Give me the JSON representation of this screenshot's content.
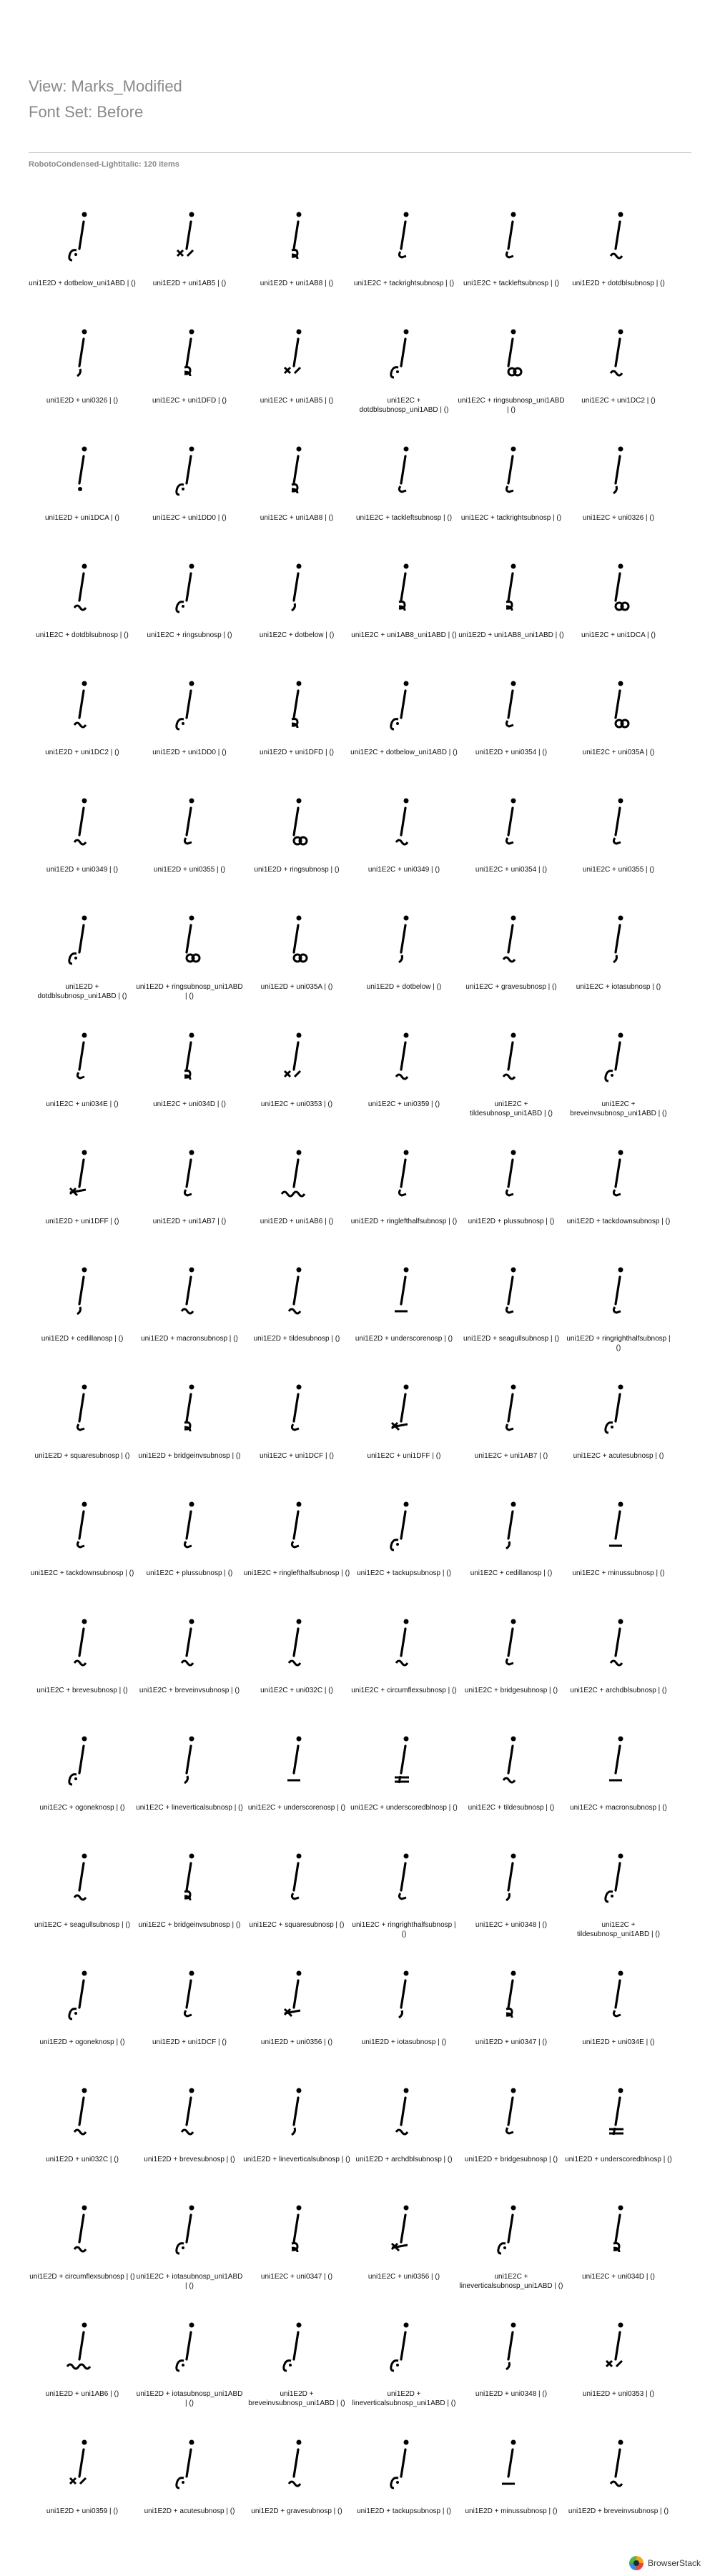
{
  "header": {
    "view_title": "View: Marks_Modified",
    "font_set": "Font Set: Before"
  },
  "section": {
    "title": "RobotoCondensed-LightItalic: 120 items"
  },
  "items": [
    {
      "label": "uni1E2D + dotbelow_uni1ABD | ()",
      "mark": "hook"
    },
    {
      "label": "uni1E2D + uni1AB5 | ()",
      "mark": "x"
    },
    {
      "label": "uni1E2D + uni1AB8 | ()",
      "mark": "double"
    },
    {
      "label": "uni1E2C + tackrightsubnosp | ()",
      "mark": "tick"
    },
    {
      "label": "uni1E2C + tackleftsubnosp | ()",
      "mark": "tick"
    },
    {
      "label": "uni1E2D + dotdblsubnosp | ()",
      "mark": "tilde"
    },
    {
      "label": "uni1E2D + uni0326 | ()",
      "mark": "comma"
    },
    {
      "label": "uni1E2C + uni1DFD | ()",
      "mark": "double"
    },
    {
      "label": "uni1E2C + uni1AB5 | ()",
      "mark": "x"
    },
    {
      "label": "uni1E2C + dotdblsubnosp_uni1ABD | ()",
      "mark": "hook"
    },
    {
      "label": "uni1E2C + ringsubnosp_uni1ABD | ()",
      "mark": "ring"
    },
    {
      "label": "uni1E2C + uni1DC2 | ()",
      "mark": "tilde"
    },
    {
      "label": "uni1E2D + uni1DCA | ()",
      "mark": "dot"
    },
    {
      "label": "uni1E2C + uni1DD0 | ()",
      "mark": "hook"
    },
    {
      "label": "uni1E2C + uni1AB8 | ()",
      "mark": "double"
    },
    {
      "label": "uni1E2C + tackleftsubnosp | ()",
      "mark": "tick"
    },
    {
      "label": "uni1E2C + tackrightsubnosp | ()",
      "mark": "tick"
    },
    {
      "label": "uni1E2C + uni0326 | ()",
      "mark": "comma"
    },
    {
      "label": "uni1E2C + dotdblsubnosp | ()",
      "mark": "tilde"
    },
    {
      "label": "uni1E2C + ringsubnosp | ()",
      "mark": "hook"
    },
    {
      "label": "uni1E2C + dotbelow | ()",
      "mark": "comma"
    },
    {
      "label": "uni1E2C + uni1AB8_uni1ABD | ()",
      "mark": "double"
    },
    {
      "label": "uni1E2D + uni1AB8_uni1ABD | ()",
      "mark": "double"
    },
    {
      "label": "uni1E2C + uni1DCA | ()",
      "mark": "ring"
    },
    {
      "label": "uni1E2D + uni1DC2 | ()",
      "mark": "tilde"
    },
    {
      "label": "uni1E2D + uni1DD0 | ()",
      "mark": "hook"
    },
    {
      "label": "uni1E2D + uni1DFD | ()",
      "mark": "double"
    },
    {
      "label": "uni1E2C + dotbelow_uni1ABD | ()",
      "mark": "hook"
    },
    {
      "label": "uni1E2D + uni0354 | ()",
      "mark": "tick"
    },
    {
      "label": "uni1E2C + uni035A | ()",
      "mark": "ring"
    },
    {
      "label": "uni1E2D + uni0349 | ()",
      "mark": "tilde"
    },
    {
      "label": "uni1E2D + uni0355 | ()",
      "mark": "tick"
    },
    {
      "label": "uni1E2D + ringsubnosp | ()",
      "mark": "ring"
    },
    {
      "label": "uni1E2C + uni0349 | ()",
      "mark": "tilde"
    },
    {
      "label": "uni1E2C + uni0354 | ()",
      "mark": "tick"
    },
    {
      "label": "uni1E2C + uni0355 | ()",
      "mark": "tick"
    },
    {
      "label": "uni1E2D + dotdblsubnosp_uni1ABD | ()",
      "mark": "hook"
    },
    {
      "label": "uni1E2D + ringsubnosp_uni1ABD | ()",
      "mark": "ring"
    },
    {
      "label": "uni1E2D + uni035A | ()",
      "mark": "ring"
    },
    {
      "label": "uni1E2D + dotbelow | ()",
      "mark": "comma"
    },
    {
      "label": "uni1E2C + gravesubnosp | ()",
      "mark": "tilde"
    },
    {
      "label": "uni1E2C + iotasubnosp | ()",
      "mark": "comma"
    },
    {
      "label": "uni1E2C + uni034E | ()",
      "mark": "tick"
    },
    {
      "label": "uni1E2C + uni034D | ()",
      "mark": "double"
    },
    {
      "label": "uni1E2C + uni0353 | ()",
      "mark": "x"
    },
    {
      "label": "uni1E2C + uni0359 | ()",
      "mark": "tilde"
    },
    {
      "label": "uni1E2C + tildesubnosp_uni1ABD | ()",
      "mark": "tilde"
    },
    {
      "label": "uni1E2C + breveinvsubnosp_uni1ABD | ()",
      "mark": "hook"
    },
    {
      "label": "uni1E2D + uni1DFF | ()",
      "mark": "arrow"
    },
    {
      "label": "uni1E2D + uni1AB7 | ()",
      "mark": "tick"
    },
    {
      "label": "uni1E2D + uni1AB6 | ()",
      "mark": "wave"
    },
    {
      "label": "uni1E2D + ringlefthalfsubnosp | ()",
      "mark": "tick"
    },
    {
      "label": "uni1E2D + plussubnosp | ()",
      "mark": "tick"
    },
    {
      "label": "uni1E2D + tackdownsubnosp | ()",
      "mark": "tick"
    },
    {
      "label": "uni1E2D + cedillanosp | ()",
      "mark": "comma"
    },
    {
      "label": "uni1E2D + macronsubnosp | ()",
      "mark": "tilde"
    },
    {
      "label": "uni1E2D + tildesubnosp | ()",
      "mark": "tilde"
    },
    {
      "label": "uni1E2D + underscorenosp | ()",
      "mark": "bar"
    },
    {
      "label": "uni1E2D + seagullsubnosp | ()",
      "mark": "tick"
    },
    {
      "label": "uni1E2D + ringrighthalfsubnosp | ()",
      "mark": "tick"
    },
    {
      "label": "uni1E2D + squaresubnosp | ()",
      "mark": "tick"
    },
    {
      "label": "uni1E2D + bridgeinvsubnosp | ()",
      "mark": "double"
    },
    {
      "label": "uni1E2C + uni1DCF | ()",
      "mark": "tick"
    },
    {
      "label": "uni1E2C + uni1DFF | ()",
      "mark": "arrow"
    },
    {
      "label": "uni1E2C + uni1AB7 | ()",
      "mark": "tick"
    },
    {
      "label": "uni1E2C + acutesubnosp | ()",
      "mark": "hook"
    },
    {
      "label": "uni1E2C + tackdownsubnosp | ()",
      "mark": "tick"
    },
    {
      "label": "uni1E2C + plussubnosp | ()",
      "mark": "tick"
    },
    {
      "label": "uni1E2C + ringlefthalfsubnosp | ()",
      "mark": "tick"
    },
    {
      "label": "uni1E2C + tackupsubnosp | ()",
      "mark": "hook"
    },
    {
      "label": "uni1E2C + cedillanosp | ()",
      "mark": "comma"
    },
    {
      "label": "uni1E2C + minussubnosp | ()",
      "mark": "bar"
    },
    {
      "label": "uni1E2C + brevesubnosp | ()",
      "mark": "tilde"
    },
    {
      "label": "uni1E2C + breveinvsubnosp | ()",
      "mark": "tilde"
    },
    {
      "label": "uni1E2C + uni032C | ()",
      "mark": "tilde"
    },
    {
      "label": "uni1E2C + circumflexsubnosp | ()",
      "mark": "tilde"
    },
    {
      "label": "uni1E2C + bridgesubnosp | ()",
      "mark": "tick"
    },
    {
      "label": "uni1E2C + archdblsubnosp | ()",
      "mark": "tilde"
    },
    {
      "label": "uni1E2C + ogoneknosp | ()",
      "mark": "hook"
    },
    {
      "label": "uni1E2C + lineverticalsubnosp | ()",
      "mark": "comma"
    },
    {
      "label": "uni1E2C + underscorenosp | ()",
      "mark": "bar"
    },
    {
      "label": "uni1E2C + underscoredblnosp | ()",
      "mark": "dblbar"
    },
    {
      "label": "uni1E2C + tildesubnosp | ()",
      "mark": "tilde"
    },
    {
      "label": "uni1E2C + macronsubnosp | ()",
      "mark": "bar"
    },
    {
      "label": "uni1E2C + seagullsubnosp | ()",
      "mark": "tilde"
    },
    {
      "label": "uni1E2C + bridgeinvsubnosp | ()",
      "mark": "double"
    },
    {
      "label": "uni1E2C + squaresubnosp | ()",
      "mark": "tick"
    },
    {
      "label": "uni1E2C + ringrighthalfsubnosp | ()",
      "mark": "tick"
    },
    {
      "label": "uni1E2C + uni0348 | ()",
      "mark": "comma"
    },
    {
      "label": "uni1E2C + tildesubnosp_uni1ABD | ()",
      "mark": "hook"
    },
    {
      "label": "uni1E2D + ogoneknosp | ()",
      "mark": "hook"
    },
    {
      "label": "uni1E2D + uni1DCF | ()",
      "mark": "tick"
    },
    {
      "label": "uni1E2D + uni0356 | ()",
      "mark": "arrow"
    },
    {
      "label": "uni1E2D + iotasubnosp | ()",
      "mark": "comma"
    },
    {
      "label": "uni1E2D + uni0347 | ()",
      "mark": "double"
    },
    {
      "label": "uni1E2D + uni034E | ()",
      "mark": "tick"
    },
    {
      "label": "uni1E2D + uni032C | ()",
      "mark": "tilde"
    },
    {
      "label": "uni1E2D + brevesubnosp | ()",
      "mark": "tilde"
    },
    {
      "label": "uni1E2D + lineverticalsubnosp | ()",
      "mark": "comma"
    },
    {
      "label": "uni1E2D + archdblsubnosp | ()",
      "mark": "tilde"
    },
    {
      "label": "uni1E2D + bridgesubnosp | ()",
      "mark": "tick"
    },
    {
      "label": "uni1E2D + underscoredblnosp | ()",
      "mark": "dblbar"
    },
    {
      "label": "uni1E2D + circumflexsubnosp | ()",
      "mark": "tilde"
    },
    {
      "label": "uni1E2C + iotasubnosp_uni1ABD | ()",
      "mark": "hook"
    },
    {
      "label": "uni1E2C + uni0347 | ()",
      "mark": "double"
    },
    {
      "label": "uni1E2C + uni0356 | ()",
      "mark": "arrow"
    },
    {
      "label": "uni1E2C + lineverticalsubnosp_uni1ABD | ()",
      "mark": "hook"
    },
    {
      "label": "uni1E2C + uni034D | ()",
      "mark": "double"
    },
    {
      "label": "uni1E2D + uni1AB6 | ()",
      "mark": "wave"
    },
    {
      "label": "uni1E2D + iotasubnosp_uni1ABD | ()",
      "mark": "hook"
    },
    {
      "label": "uni1E2D + breveinvsubnosp_uni1ABD | ()",
      "mark": "hook"
    },
    {
      "label": "uni1E2D + lineverticalsubnosp_uni1ABD | ()",
      "mark": "hook"
    },
    {
      "label": "uni1E2D + uni0348 | ()",
      "mark": "comma"
    },
    {
      "label": "uni1E2D + uni0353 | ()",
      "mark": "x"
    },
    {
      "label": "uni1E2D + uni0359 | ()",
      "mark": "x"
    },
    {
      "label": "uni1E2D + acutesubnosp | ()",
      "mark": "hook"
    },
    {
      "label": "uni1E2D + gravesubnosp | ()",
      "mark": "tilde"
    },
    {
      "label": "uni1E2D + tackupsubnosp | ()",
      "mark": "hook"
    },
    {
      "label": "uni1E2D + minussubnosp | ()",
      "mark": "bar"
    },
    {
      "label": "uni1E2D + breveinvsubnosp | ()",
      "mark": "tilde"
    }
  ],
  "footer": {
    "brand": "BrowserStack"
  }
}
